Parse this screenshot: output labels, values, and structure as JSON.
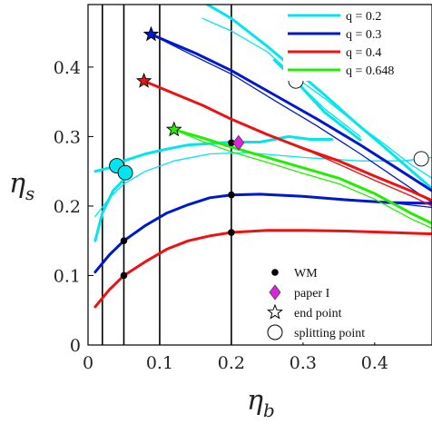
{
  "chart_data": {
    "type": "line",
    "xlabel": "η",
    "xlabel_sub": "b",
    "ylabel": "η",
    "ylabel_sub": "s",
    "xlim": [
      0,
      0.48
    ],
    "ylim": [
      0,
      0.49
    ],
    "x_ticks": [
      "0",
      "0.1",
      "0.2",
      "0.3",
      "0.4"
    ],
    "y_ticks": [
      "0",
      "0.1",
      "0.2",
      "0.3",
      "0.4"
    ],
    "x_tick_values": [
      0,
      0.1,
      0.2,
      0.3,
      0.4
    ],
    "y_tick_values": [
      0,
      0.1,
      0.2,
      0.3,
      0.4
    ],
    "vertical_lines_x": [
      0.02,
      0.05,
      0.1,
      0.2
    ],
    "series": [
      {
        "name": "q = 0.2",
        "color": "#00e5ee",
        "lower_thick": [
          [
            0.01,
            0.15
          ],
          [
            0.02,
            0.19
          ],
          [
            0.035,
            0.222
          ],
          [
            0.05,
            0.238
          ]
        ],
        "upper_thick": [
          [
            0.01,
            0.25
          ],
          [
            0.03,
            0.255
          ],
          [
            0.05,
            0.265
          ],
          [
            0.08,
            0.275
          ],
          [
            0.11,
            0.282
          ],
          [
            0.14,
            0.288
          ],
          [
            0.17,
            0.29
          ],
          [
            0.2,
            0.292
          ],
          [
            0.24,
            0.292
          ],
          [
            0.28,
            0.3
          ],
          [
            0.31,
            0.296
          ],
          [
            0.34,
            0.296
          ]
        ],
        "upper_thin": [
          [
            0.01,
            0.185
          ],
          [
            0.03,
            0.212
          ],
          [
            0.05,
            0.232
          ],
          [
            0.08,
            0.25
          ],
          [
            0.12,
            0.265
          ],
          [
            0.17,
            0.275
          ],
          [
            0.22,
            0.277
          ],
          [
            0.3,
            0.27
          ],
          [
            0.38,
            0.265
          ],
          [
            0.44,
            0.265
          ],
          [
            0.48,
            0.27
          ]
        ],
        "descend_thick": [
          [
            0.15,
            0.5
          ],
          [
            0.2,
            0.47
          ],
          [
            0.25,
            0.43
          ],
          [
            0.29,
            0.395
          ],
          [
            0.33,
            0.36
          ],
          [
            0.37,
            0.323
          ],
          [
            0.41,
            0.288
          ],
          [
            0.45,
            0.252
          ],
          [
            0.48,
            0.225
          ]
        ],
        "descend_thin": [
          [
            0.16,
            0.47
          ],
          [
            0.2,
            0.452
          ],
          [
            0.25,
            0.422
          ],
          [
            0.29,
            0.385
          ],
          [
            0.33,
            0.355
          ],
          [
            0.37,
            0.322
          ],
          [
            0.41,
            0.292
          ],
          [
            0.45,
            0.26
          ],
          [
            0.48,
            0.24
          ]
        ],
        "branch_thick": [
          [
            0.26,
            0.41
          ],
          [
            0.29,
            0.38
          ],
          [
            0.33,
            0.335
          ],
          [
            0.38,
            0.295
          ]
        ],
        "branch_thin": [
          [
            0.29,
            0.38
          ],
          [
            0.33,
            0.34
          ],
          [
            0.38,
            0.3
          ]
        ],
        "splitting_points": [
          [
            0.04,
            0.258
          ],
          [
            0.052,
            0.248
          ],
          [
            0.29,
            0.38
          ],
          [
            0.465,
            0.268
          ]
        ]
      },
      {
        "name": "q = 0.3",
        "color": "#0018cc",
        "lower_thick": [
          [
            0.01,
            0.105
          ],
          [
            0.03,
            0.13
          ],
          [
            0.05,
            0.15
          ],
          [
            0.08,
            0.172
          ],
          [
            0.11,
            0.19
          ],
          [
            0.14,
            0.202
          ],
          [
            0.17,
            0.212
          ],
          [
            0.2,
            0.216
          ],
          [
            0.24,
            0.217
          ],
          [
            0.3,
            0.214
          ],
          [
            0.36,
            0.209
          ],
          [
            0.42,
            0.205
          ],
          [
            0.48,
            0.204
          ]
        ],
        "lower_thin": [
          [
            0.01,
            0.105
          ],
          [
            0.03,
            0.13
          ],
          [
            0.05,
            0.15
          ],
          [
            0.08,
            0.172
          ],
          [
            0.11,
            0.19
          ],
          [
            0.14,
            0.202
          ],
          [
            0.17,
            0.212
          ],
          [
            0.2,
            0.216
          ],
          [
            0.24,
            0.216
          ],
          [
            0.3,
            0.214
          ],
          [
            0.36,
            0.21
          ],
          [
            0.42,
            0.205
          ],
          [
            0.48,
            0.198
          ]
        ],
        "upper_thick": [
          [
            0.088,
            0.447
          ],
          [
            0.15,
            0.42
          ],
          [
            0.2,
            0.395
          ],
          [
            0.26,
            0.36
          ],
          [
            0.32,
            0.325
          ],
          [
            0.38,
            0.288
          ],
          [
            0.43,
            0.255
          ],
          [
            0.48,
            0.222
          ]
        ],
        "upper_thin": [
          [
            0.088,
            0.447
          ],
          [
            0.15,
            0.415
          ],
          [
            0.2,
            0.39
          ],
          [
            0.26,
            0.352
          ],
          [
            0.32,
            0.315
          ],
          [
            0.38,
            0.275
          ],
          [
            0.43,
            0.24
          ],
          [
            0.48,
            0.205
          ]
        ],
        "end_point": [
          0.088,
          0.447
        ]
      },
      {
        "name": "q = 0.4",
        "color": "#ee1111",
        "lower_thick": [
          [
            0.01,
            0.055
          ],
          [
            0.03,
            0.08
          ],
          [
            0.05,
            0.1
          ],
          [
            0.08,
            0.12
          ],
          [
            0.11,
            0.138
          ],
          [
            0.14,
            0.15
          ],
          [
            0.17,
            0.157
          ],
          [
            0.2,
            0.162
          ],
          [
            0.25,
            0.165
          ],
          [
            0.3,
            0.165
          ],
          [
            0.36,
            0.164
          ],
          [
            0.42,
            0.162
          ],
          [
            0.48,
            0.16
          ]
        ],
        "upper_thick": [
          [
            0.078,
            0.38
          ],
          [
            0.12,
            0.362
          ],
          [
            0.16,
            0.345
          ],
          [
            0.2,
            0.325
          ],
          [
            0.25,
            0.303
          ],
          [
            0.3,
            0.283
          ],
          [
            0.35,
            0.265
          ],
          [
            0.4,
            0.243
          ],
          [
            0.45,
            0.222
          ],
          [
            0.48,
            0.208
          ]
        ],
        "upper_thin": [
          [
            0.078,
            0.38
          ],
          [
            0.12,
            0.362
          ],
          [
            0.16,
            0.345
          ],
          [
            0.2,
            0.325
          ],
          [
            0.25,
            0.303
          ],
          [
            0.3,
            0.283
          ],
          [
            0.35,
            0.26
          ],
          [
            0.4,
            0.237
          ],
          [
            0.45,
            0.215
          ],
          [
            0.48,
            0.2
          ]
        ],
        "end_point": [
          0.078,
          0.38
        ]
      },
      {
        "name": "q = 0.648",
        "color": "#22ee00",
        "upper_thick": [
          [
            0.12,
            0.31
          ],
          [
            0.16,
            0.298
          ],
          [
            0.2,
            0.285
          ],
          [
            0.25,
            0.27
          ],
          [
            0.3,
            0.255
          ],
          [
            0.35,
            0.24
          ],
          [
            0.4,
            0.218
          ],
          [
            0.45,
            0.19
          ],
          [
            0.48,
            0.175
          ]
        ],
        "upper_thin": [
          [
            0.12,
            0.31
          ],
          [
            0.16,
            0.293
          ],
          [
            0.2,
            0.278
          ],
          [
            0.25,
            0.263
          ],
          [
            0.3,
            0.247
          ],
          [
            0.35,
            0.232
          ],
          [
            0.4,
            0.21
          ],
          [
            0.45,
            0.182
          ],
          [
            0.48,
            0.168
          ]
        ],
        "end_point": [
          0.12,
          0.31
        ]
      }
    ],
    "wm_points": [
      [
        0.05,
        0.1
      ],
      [
        0.05,
        0.15
      ],
      [
        0.2,
        0.162
      ],
      [
        0.2,
        0.216
      ],
      [
        0.2,
        0.291
      ]
    ],
    "paper1_point": [
      0.21,
      0.291
    ],
    "legend_top": [
      {
        "label": "q = 0.2",
        "color": "#00e5ee"
      },
      {
        "label": "q = 0.3",
        "color": "#0018cc"
      },
      {
        "label": "q = 0.4",
        "color": "#ee1111"
      },
      {
        "label": "q = 0.648",
        "color": "#22ee00"
      }
    ],
    "legend_bottom": [
      {
        "label": "WM",
        "marker": "dot"
      },
      {
        "label": "paper I",
        "marker": "diamond"
      },
      {
        "label": "end point",
        "marker": "star"
      },
      {
        "label": "splitting point",
        "marker": "circle"
      }
    ],
    "paper1_color": "#dd22dd"
  }
}
